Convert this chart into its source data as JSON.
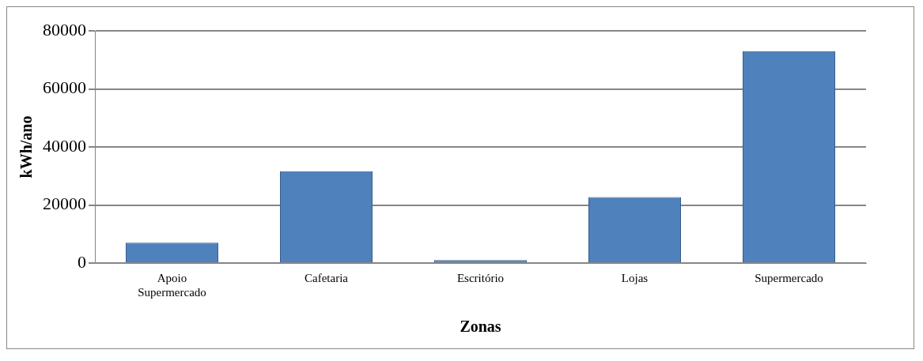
{
  "chart_data": {
    "type": "bar",
    "xlabel": "Zonas",
    "ylabel": "kWh/ano",
    "categories": [
      "Apoio Supermercado",
      "Cafetaria",
      "Escritório",
      "Lojas",
      "Supermercado"
    ],
    "values": [
      7000,
      31600,
      1000,
      22700,
      73000
    ],
    "color": "#4f81bd",
    "ylim": [
      0,
      80000
    ],
    "yticks": [
      0,
      20000,
      40000,
      60000,
      80000
    ],
    "grid": "y",
    "legend": false
  }
}
